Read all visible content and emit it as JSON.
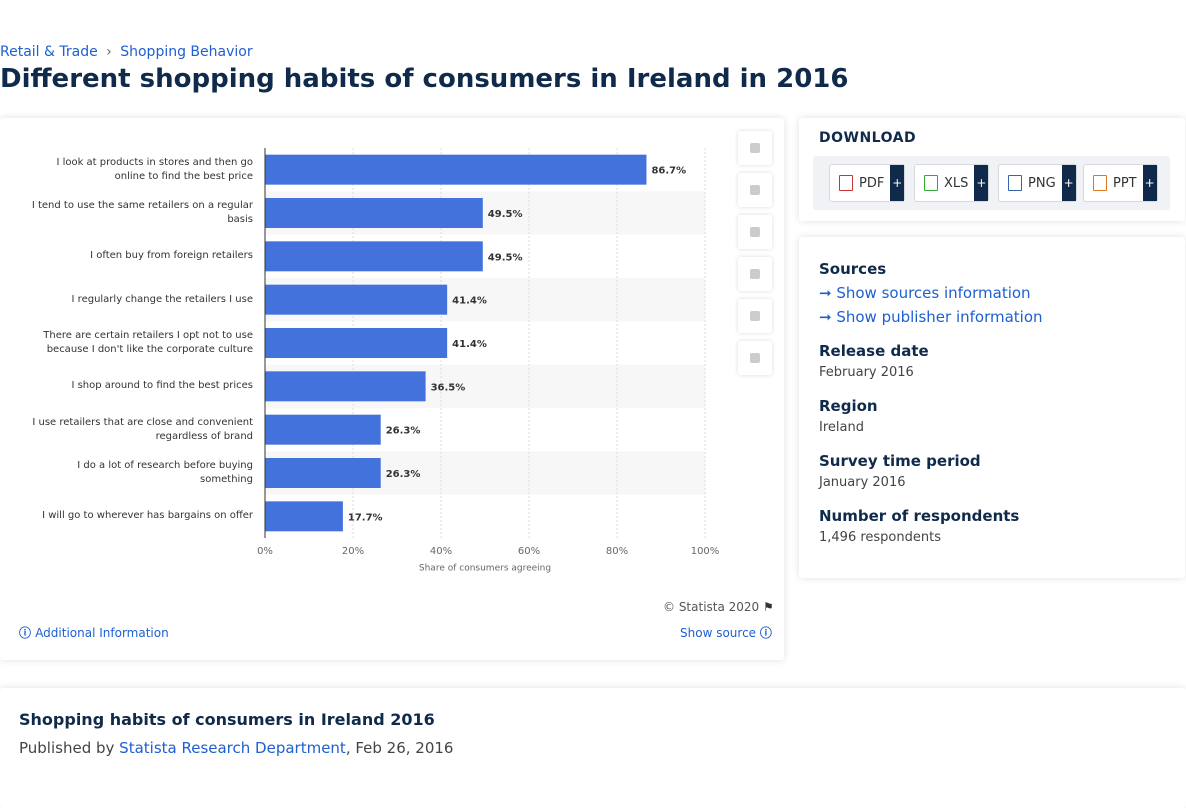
{
  "breadcrumb": [
    "Retail & Trade",
    "Shopping Behavior"
  ],
  "title": "Different shopping habits of consumers in Ireland in 2016",
  "chart_data": {
    "type": "bar",
    "orientation": "horizontal",
    "categories": [
      "I look at products in stores and then go online to find the best price",
      "I tend to use the same retailers on a regular basis",
      "I often buy from foreign retailers",
      "I regularly change the retailers I use",
      "There are certain retailers I opt not to use because I don't like the corporate culture",
      "I shop around to find the best prices",
      "I use retailers that are close and convenient regardless of brand",
      "I do a lot of research before buying something",
      "I will go to wherever has bargains on offer"
    ],
    "values": [
      86.7,
      49.5,
      49.5,
      41.4,
      41.4,
      36.5,
      26.3,
      26.3,
      17.7
    ],
    "value_labels": [
      "86.7%",
      "49.5%",
      "49.5%",
      "41.4%",
      "41.4%",
      "36.5%",
      "26.3%",
      "26.3%",
      "17.7%"
    ],
    "color": "#4372dc",
    "xlim": [
      0,
      100
    ],
    "xticks": [
      {
        "value": 0,
        "label": "0%"
      },
      {
        "value": 20,
        "label": "20%"
      },
      {
        "value": 40,
        "label": "40%"
      },
      {
        "value": 60,
        "label": "60%"
      },
      {
        "value": 80,
        "label": "80%"
      },
      {
        "value": 100,
        "label": "100%"
      }
    ],
    "xlabel": "Share of consumers agreeing",
    "grid": true
  },
  "copyright": "© Statista 2020",
  "additional_info": "Additional Information",
  "show_source": "Show source",
  "download": {
    "heading": "DOWNLOAD",
    "formats": [
      "PDF",
      "XLS",
      "PNG",
      "PPT"
    ],
    "plus": "+"
  },
  "sources": {
    "heading": "Sources",
    "links": [
      "Show sources information",
      "Show publisher information"
    ]
  },
  "details": [
    {
      "label": "Release date",
      "value": "February 2016"
    },
    {
      "label": "Region",
      "value": "Ireland"
    },
    {
      "label": "Survey time period",
      "value": "January 2016"
    },
    {
      "label": "Number of respondents",
      "value": "1,496 respondents"
    }
  ],
  "footer": {
    "title": "Shopping habits of consumers in Ireland 2016",
    "published_by": "Published by",
    "publisher": "Statista Research Department",
    "date": ", Feb 26, 2016"
  }
}
